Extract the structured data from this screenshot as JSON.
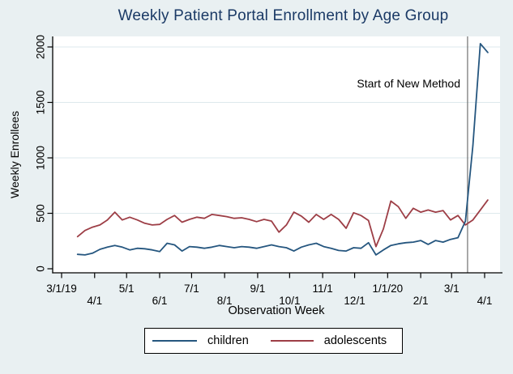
{
  "figure": {
    "background_color": "#e9f0f2",
    "plot_background": "#ffffff",
    "grid_color": "#dde9ec",
    "axis_color": "#000000",
    "title_color": "#1b3a66"
  },
  "chart_data": {
    "type": "line",
    "title": "Weekly Patient Portal Enrollment by Age Group",
    "xlabel": "Observation Week",
    "ylabel": "Weekly Enrollees",
    "ylim": [
      0,
      2100
    ],
    "yticks": [
      0,
      500,
      1000,
      1500,
      2000
    ],
    "grid": true,
    "legend_position": "bottom-center",
    "x_axis_start": "2019-03-01",
    "x_first_point_day_offset": 15,
    "x_step_days": 7,
    "xtick_labels": [
      "3/1/19",
      "4/1",
      "5/1",
      "6/1",
      "7/1",
      "8/1",
      "9/1",
      "10/1",
      "11/1",
      "12/1",
      "1/1/20",
      "2/1",
      "3/1",
      "4/1"
    ],
    "xtick_day_offsets": [
      0,
      31,
      61,
      92,
      122,
      153,
      184,
      214,
      245,
      275,
      306,
      337,
      366,
      397
    ],
    "series": [
      {
        "name": "children",
        "color": "#25567f",
        "values": [
          130,
          125,
          140,
          175,
          195,
          210,
          195,
          170,
          185,
          180,
          170,
          155,
          230,
          215,
          160,
          200,
          195,
          185,
          195,
          210,
          200,
          190,
          200,
          195,
          185,
          200,
          215,
          200,
          190,
          160,
          195,
          215,
          230,
          200,
          185,
          165,
          160,
          190,
          185,
          235,
          125,
          170,
          210,
          225,
          235,
          240,
          255,
          220,
          255,
          240,
          265,
          280,
          430,
          1110,
          2030,
          1950
        ]
      },
      {
        "name": "adolescents",
        "color": "#9d3e46",
        "values": [
          290,
          345,
          375,
          395,
          440,
          510,
          440,
          465,
          440,
          410,
          395,
          400,
          445,
          480,
          420,
          445,
          465,
          455,
          490,
          480,
          470,
          455,
          460,
          445,
          425,
          445,
          430,
          330,
          395,
          510,
          475,
          420,
          490,
          445,
          490,
          445,
          365,
          505,
          480,
          435,
          200,
          360,
          610,
          560,
          455,
          545,
          510,
          530,
          510,
          525,
          440,
          480,
          395,
          440,
          530,
          620
        ]
      }
    ],
    "annotation": {
      "text": "Start of New Method",
      "vline_date": "2020-03-16",
      "vline_day_offset": 381,
      "vline_color": "#6f6f6f"
    }
  }
}
